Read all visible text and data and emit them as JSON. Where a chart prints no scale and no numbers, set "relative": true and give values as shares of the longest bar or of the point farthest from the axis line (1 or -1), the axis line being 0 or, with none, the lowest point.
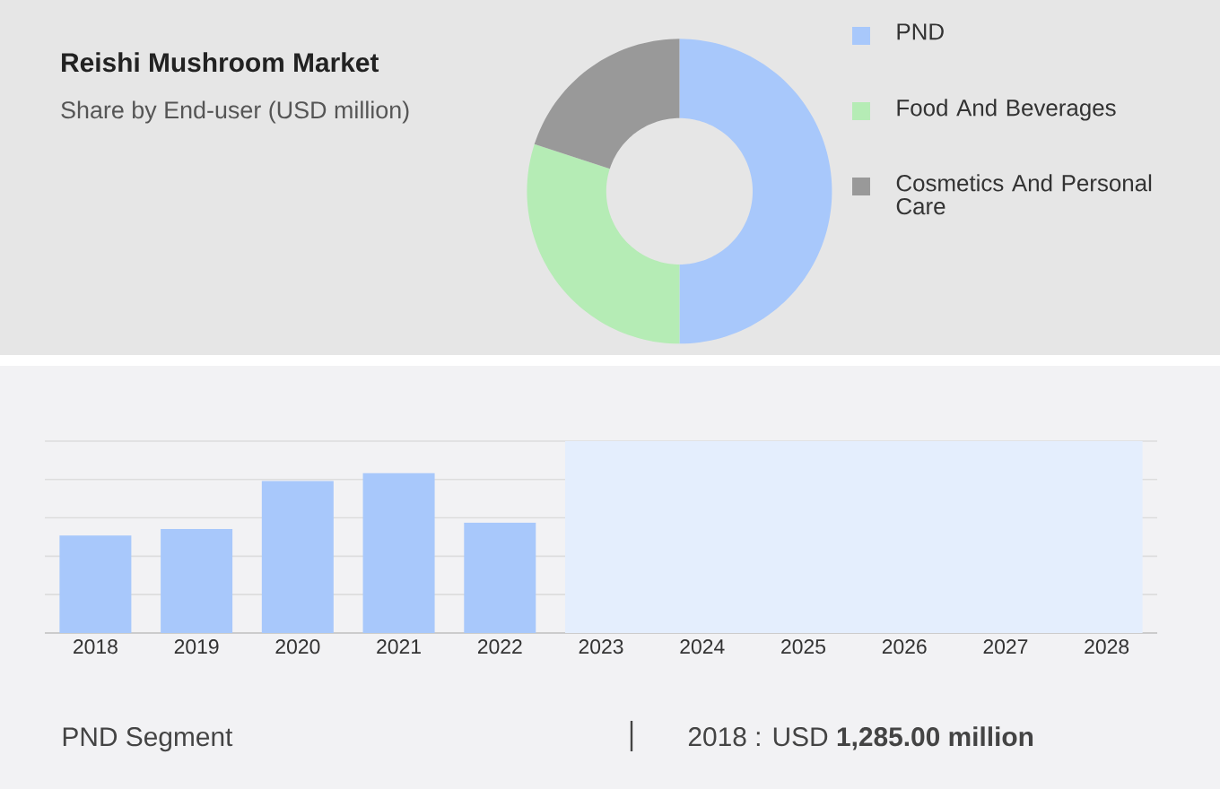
{
  "chart_data": [
    {
      "type": "donut",
      "title": "Reishi Mushroom Market",
      "subtitle": "Share by End-user (USD million)",
      "categories": [
        "PND",
        "Food And Beverages",
        "Cosmetics And Personal Care"
      ],
      "values": [
        50,
        30,
        20
      ],
      "colors": [
        "#a8c8fb",
        "#b5ecb5",
        "#999999"
      ],
      "legend": "right"
    },
    {
      "type": "bar",
      "categories": [
        "2018",
        "2019",
        "2020",
        "2021",
        "2022",
        "2023",
        "2024",
        "2025",
        "2026",
        "2027",
        "2028"
      ],
      "values": [
        0.61,
        0.65,
        0.95,
        1,
        0.69,
        null,
        null,
        null,
        null,
        null,
        null
      ],
      "color": "#a8c8fb",
      "relative": true,
      "grid": "y",
      "bands": [
        {
          "axis": "x",
          "from": "2023",
          "to": "2028",
          "color": "#e4eefd"
        }
      ],
      "annotations": [
        "PND Segment",
        "2018 : USD **1,285.00 million**"
      ]
    }
  ]
}
